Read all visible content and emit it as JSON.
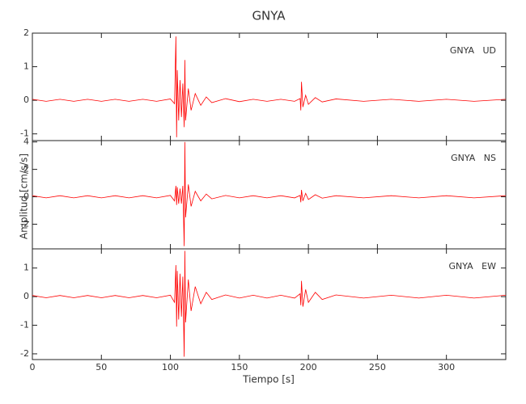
{
  "figure": {
    "title": "GNYA",
    "xlabel": "Tiempo [s]",
    "ylabel": "Amplitud [cm/s/s]"
  },
  "chart_data": [
    {
      "type": "line",
      "label": "GNYA   UD",
      "color": "#ff0000",
      "xlim": [
        0,
        343
      ],
      "xticks": [
        0,
        50,
        100,
        150,
        200,
        250,
        300
      ],
      "ylim": [
        -1.2,
        2
      ],
      "yticks": [
        -1,
        0,
        1,
        2
      ],
      "x": [
        0,
        10,
        20,
        30,
        40,
        50,
        60,
        70,
        80,
        90,
        100,
        103,
        104,
        104.5,
        105,
        106,
        107,
        108,
        109,
        110,
        110.5,
        111,
        113,
        115,
        118,
        122,
        126,
        130,
        140,
        150,
        160,
        170,
        180,
        190,
        194,
        194.5,
        195,
        196,
        198,
        200,
        205,
        210,
        220,
        240,
        260,
        280,
        300,
        320,
        343
      ],
      "values": [
        0.03,
        -0.03,
        0.03,
        -0.03,
        0.03,
        -0.03,
        0.03,
        -0.03,
        0.03,
        -0.03,
        0.04,
        -0.1,
        1.9,
        -1.1,
        0.9,
        -0.6,
        0.6,
        -0.5,
        0.5,
        -0.8,
        1.2,
        -0.6,
        0.35,
        -0.3,
        0.2,
        -0.15,
        0.1,
        -0.07,
        0.05,
        -0.04,
        0.03,
        -0.03,
        0.03,
        -0.03,
        0.05,
        -0.3,
        0.55,
        -0.2,
        0.15,
        -0.12,
        0.08,
        -0.05,
        0.04,
        -0.03,
        0.03,
        -0.03,
        0.03,
        -0.03,
        0.03
      ]
    },
    {
      "type": "line",
      "label": "GNYA   NS",
      "color": "#ff0000",
      "xlim": [
        0,
        343
      ],
      "xticks": [
        0,
        50,
        100,
        150,
        200,
        250,
        300
      ],
      "ylim": [
        -3.8,
        4.1
      ],
      "yticks": [
        -2,
        0,
        2,
        4
      ],
      "x": [
        0,
        10,
        20,
        30,
        40,
        50,
        60,
        70,
        80,
        90,
        100,
        103,
        104,
        104.5,
        105,
        106,
        107,
        108,
        109,
        110,
        110.5,
        111,
        113,
        115,
        118,
        122,
        126,
        130,
        140,
        150,
        160,
        170,
        180,
        190,
        194,
        194.5,
        195,
        196,
        198,
        200,
        205,
        210,
        220,
        240,
        260,
        280,
        300,
        320,
        343
      ],
      "values": [
        0.08,
        -0.08,
        0.08,
        -0.08,
        0.08,
        -0.08,
        0.08,
        -0.08,
        0.08,
        -0.08,
        0.1,
        -0.3,
        0.8,
        -0.6,
        0.7,
        -0.5,
        0.6,
        -0.5,
        0.8,
        -3.6,
        4.0,
        -1.5,
        0.9,
        -0.7,
        0.4,
        -0.3,
        0.2,
        -0.15,
        0.1,
        -0.08,
        0.08,
        -0.08,
        0.08,
        -0.08,
        0.1,
        -0.4,
        0.5,
        -0.3,
        0.25,
        -0.2,
        0.15,
        -0.1,
        0.08,
        -0.08,
        0.08,
        -0.08,
        0.08,
        -0.08,
        0.08
      ]
    },
    {
      "type": "line",
      "label": "GNYA   EW",
      "color": "#ff0000",
      "xlim": [
        0,
        343
      ],
      "xticks": [
        0,
        50,
        100,
        150,
        200,
        250,
        300
      ],
      "ylim": [
        -2.2,
        1.67
      ],
      "yticks": [
        -2,
        -1,
        0,
        1
      ],
      "x": [
        0,
        10,
        20,
        30,
        40,
        50,
        60,
        70,
        80,
        90,
        100,
        103,
        104,
        104.5,
        105,
        106,
        107,
        108,
        109,
        110,
        110.5,
        111,
        113,
        115,
        118,
        122,
        126,
        130,
        140,
        150,
        160,
        170,
        180,
        190,
        194,
        194.5,
        195,
        196,
        198,
        200,
        205,
        210,
        220,
        240,
        260,
        280,
        300,
        320,
        343
      ],
      "values": [
        0.04,
        -0.04,
        0.04,
        -0.04,
        0.04,
        -0.04,
        0.04,
        -0.04,
        0.04,
        -0.04,
        0.05,
        -0.2,
        1.1,
        -1.05,
        0.9,
        -0.8,
        0.8,
        -0.7,
        0.7,
        -2.1,
        1.6,
        -0.9,
        0.6,
        -0.5,
        0.35,
        -0.25,
        0.15,
        -0.1,
        0.06,
        -0.05,
        0.05,
        -0.05,
        0.05,
        -0.05,
        0.1,
        -0.3,
        0.55,
        -0.35,
        0.25,
        -0.2,
        0.15,
        -0.1,
        0.06,
        -0.05,
        0.05,
        -0.05,
        0.05,
        -0.05,
        0.05
      ]
    }
  ]
}
